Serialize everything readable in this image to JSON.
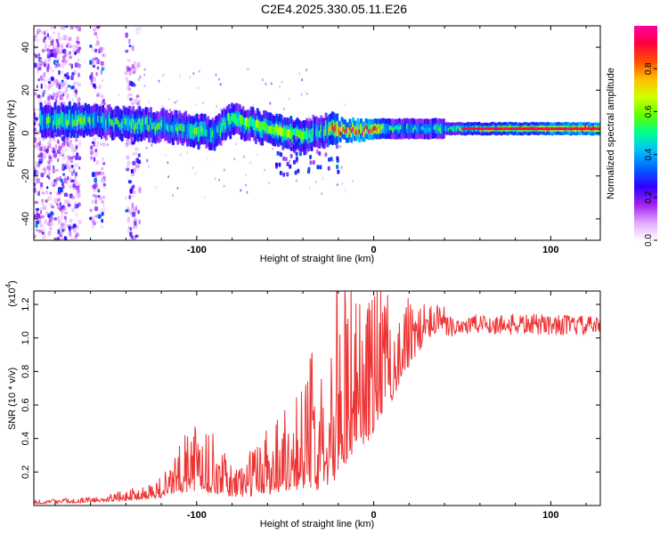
{
  "title": "C2E4.2025.330.05.11.E26",
  "chart_data": [
    {
      "type": "heatmap",
      "name": "spectrogram",
      "xlabel": "Height of straight line (km)",
      "ylabel": "Frequency (Hz)",
      "xlim": [
        -192,
        128
      ],
      "ylim": [
        -50,
        50
      ],
      "xticks": [
        -100,
        0,
        100
      ],
      "xtick_labels": [
        "-100",
        "0",
        "100"
      ],
      "yticks": [
        -40,
        -20,
        0,
        20,
        40
      ],
      "ytick_labels": [
        "-40",
        "-20",
        "0",
        "20",
        "40"
      ],
      "colorbar": {
        "label": "Normalized spectral amplitude",
        "range": [
          0,
          1
        ],
        "ticks": [
          0,
          0.2,
          0.4,
          0.6,
          0.8
        ],
        "tick_labels": [
          "0.0",
          "0.2",
          "0.4",
          "0.6",
          "0.8"
        ],
        "colors": [
          "#ffffff",
          "#e0a8ff",
          "#a020f0",
          "#3000ff",
          "#0060ff",
          "#00c0ff",
          "#00ff90",
          "#60ff00",
          "#d0ff00",
          "#ffc000",
          "#ff5000",
          "#ff0040",
          "#ff00a0"
        ]
      },
      "ridge": {
        "x": [
          -185,
          -170,
          -150,
          -130,
          -115,
          -100,
          -90,
          -80,
          -70,
          -60,
          -50,
          -40,
          -30,
          -20,
          -10,
          0,
          10,
          30,
          50,
          128
        ],
        "freq": [
          6,
          6,
          5,
          4,
          3,
          1,
          0,
          6,
          4,
          2,
          0,
          -1,
          1,
          2,
          1,
          2,
          2,
          2,
          2,
          2
        ],
        "amplitude": [
          0.55,
          0.6,
          0.5,
          0.55,
          0.5,
          0.6,
          0.55,
          0.5,
          0.5,
          0.6,
          0.65,
          0.55,
          0.5,
          0.9,
          0.95,
          0.85,
          0.5,
          0.45,
          0.6,
          0.95
        ]
      }
    },
    {
      "type": "line",
      "name": "snr",
      "xlabel": "Height of straight line (km)",
      "ylabel": "SNR (10 * v/v)",
      "multiplier_label": "(x10",
      "multiplier_exp": "4",
      "multiplier_close": ")",
      "color": "#ee3333",
      "xlim": [
        -192,
        128
      ],
      "ylim": [
        0,
        12800
      ],
      "xticks": [
        -100,
        0,
        100
      ],
      "xtick_labels": [
        "-100",
        "0",
        "100"
      ],
      "yticks": [
        2000,
        4000,
        6000,
        8000,
        10000,
        12000
      ],
      "ytick_labels": [
        "0.2",
        "0.4",
        "0.6",
        "0.8",
        "1.0",
        "1.2"
      ],
      "envelope": {
        "x": [
          -192,
          -160,
          -140,
          -120,
          -110,
          -100,
          -90,
          -80,
          -70,
          -60,
          -50,
          -40,
          -30,
          -25,
          -20,
          -15,
          -10,
          -5,
          0,
          10,
          20,
          30,
          40,
          60,
          100,
          128
        ],
        "base": [
          100,
          200,
          300,
          500,
          900,
          1100,
          900,
          600,
          700,
          900,
          1100,
          1300,
          1500,
          2000,
          2500,
          3000,
          3500,
          4200,
          4800,
          6500,
          8500,
          10000,
          10700,
          10800,
          10800,
          10700
        ],
        "spike": [
          150,
          200,
          400,
          800,
          1800,
          2800,
          2200,
          1200,
          1800,
          3000,
          3500,
          4200,
          6000,
          7000,
          9000,
          7000,
          6000,
          6500,
          6000,
          4000,
          2500,
          1500,
          800,
          800,
          800,
          700
        ]
      }
    }
  ]
}
